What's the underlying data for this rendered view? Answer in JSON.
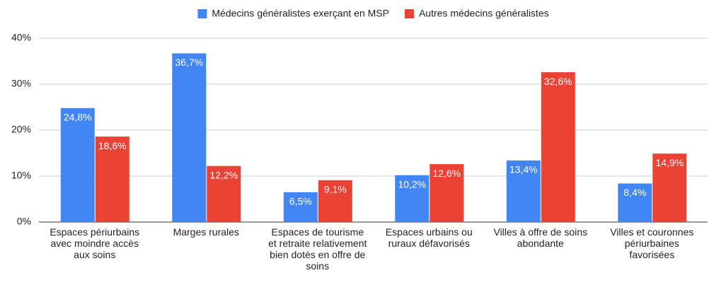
{
  "chart_data": {
    "type": "bar",
    "categories": [
      "Espaces périurbains avec moindre accès aux soins",
      "Marges rurales",
      "Espaces de tourisme et retraite relativement bien dotés en offre de soins",
      "Espaces urbains ou ruraux défavorisés",
      "Villes à offre de soins abondante",
      "Villes et couronnes périurbaines favorisées"
    ],
    "series": [
      {
        "name": "Médecins généralistes exerçant en MSP",
        "color": "#4285f4",
        "values": [
          24.8,
          36.7,
          6.5,
          10.2,
          13.4,
          8.4
        ],
        "value_labels": [
          "24,8%",
          "36,7%",
          "6,5%",
          "10,2%",
          "13,4%",
          "8,4%"
        ]
      },
      {
        "name": "Autres médecins généralistes",
        "color": "#ea4335",
        "values": [
          18.6,
          12.2,
          9.1,
          12.6,
          32.6,
          14.9
        ],
        "value_labels": [
          "18,6%",
          "12,2%",
          "9,1%",
          "12,6%",
          "32,6%",
          "14,9%"
        ]
      }
    ],
    "ylim": [
      0,
      40
    ],
    "yticks": [
      {
        "value": 0,
        "label": "0%"
      },
      {
        "value": 10,
        "label": "10%"
      },
      {
        "value": 20,
        "label": "20%"
      },
      {
        "value": 30,
        "label": "30%"
      },
      {
        "value": 40,
        "label": "40%"
      }
    ],
    "grid": true,
    "legend": "top"
  }
}
